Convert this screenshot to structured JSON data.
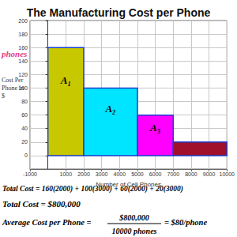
{
  "chart_data": {
    "type": "histogram",
    "title": "The Manufacturing Cost per Phone",
    "x_label": "Number of Cell Phones",
    "y_label": "Cost Per Phone in $",
    "bins": [
      0,
      2000,
      5000,
      7000,
      10000
    ],
    "values": [
      160,
      100,
      60,
      20
    ],
    "colors": [
      "#c8c800",
      "#00e5ff",
      "#ff00ff",
      "#a0102a"
    ],
    "bar_labels": [
      "A₁",
      "A₂",
      "A₃",
      null
    ],
    "xlim": [
      -1000,
      10000
    ],
    "xticks": [
      -1000,
      1000,
      2000,
      3000,
      4000,
      5000,
      6000,
      7000,
      8000,
      9000,
      10000
    ],
    "ylim": [
      -20,
      200
    ],
    "yticks": [
      0,
      20,
      40,
      60,
      80,
      100,
      120,
      140,
      160,
      180,
      200
    ],
    "grid": true,
    "side_note": "phones",
    "equations": {
      "total_cost_sum": "Total Cost = 160(2000) + 100(3000) + 60(2000) + 20(3000)",
      "total_cost": "Total Cost = $800,000",
      "average": {
        "left": "Average Cost per Phone =",
        "numerator": "$800,000",
        "denominator": "10000 phones",
        "right": "= $80/phone"
      }
    }
  }
}
